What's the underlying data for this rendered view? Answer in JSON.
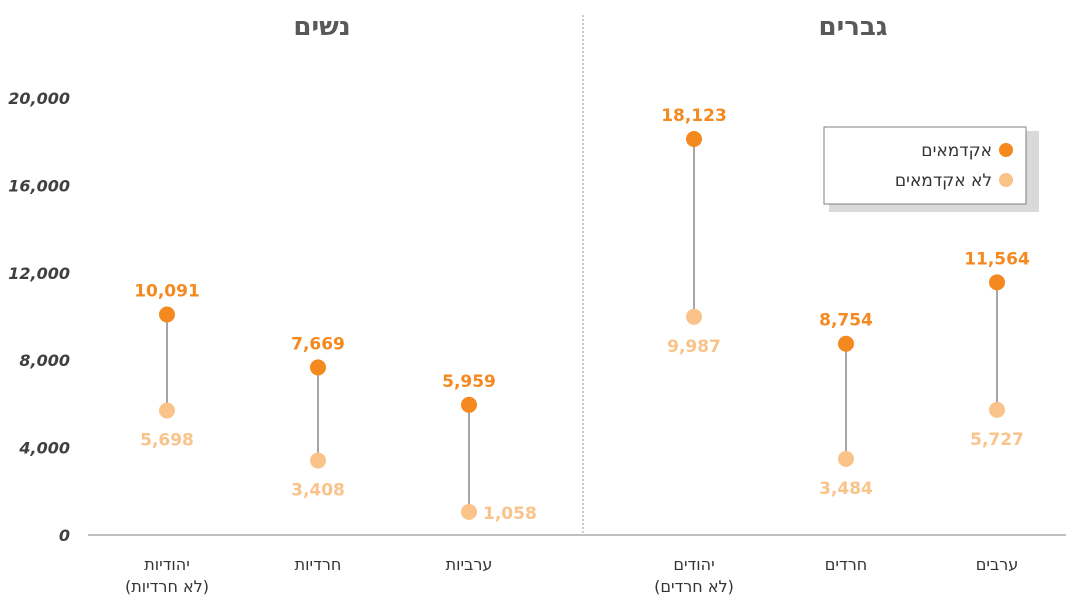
{
  "chart_data": {
    "type": "dumbbell",
    "series": [
      {
        "name": "אקדמאים",
        "color": "#F4891F"
      },
      {
        "name": "לא אקדמאים",
        "color": "#F9C38A"
      }
    ],
    "ylim": [
      0,
      20000
    ],
    "yticks": [
      "0",
      "4,000",
      "8,000",
      "12,000",
      "16,000",
      "20,000"
    ],
    "ytick_values": [
      0,
      4000,
      8000,
      12000,
      16000,
      20000
    ],
    "legend": {
      "position": "top-right",
      "items": [
        "אקדמאים",
        "לא אקדמאים"
      ]
    },
    "panels": [
      {
        "title": "נשים",
        "categories": [
          {
            "label": [
              "יהודיות",
              "(לא חרדיות)"
            ],
            "academic": 10091,
            "academic_label": "10,091",
            "non_academic": 5698,
            "non_academic_label": "5,698"
          },
          {
            "label": [
              "חרדיות"
            ],
            "academic": 7669,
            "academic_label": "7,669",
            "non_academic": 3408,
            "non_academic_label": "3,408"
          },
          {
            "label": [
              "ערביות"
            ],
            "academic": 5959,
            "academic_label": "5,959",
            "non_academic": 1058,
            "non_academic_label": "1,058"
          }
        ]
      },
      {
        "title": "גברים",
        "categories": [
          {
            "label": [
              "יהודים",
              "(לא חרדים)"
            ],
            "academic": 18123,
            "academic_label": "18,123",
            "non_academic": 9987,
            "non_academic_label": "9,987"
          },
          {
            "label": [
              "חרדים"
            ],
            "academic": 8754,
            "academic_label": "8,754",
            "non_academic": 3484,
            "non_academic_label": "3,484"
          },
          {
            "label": [
              "ערבים"
            ],
            "academic": 11564,
            "academic_label": "11,564",
            "non_academic": 5727,
            "non_academic_label": "5,727"
          }
        ]
      }
    ]
  }
}
